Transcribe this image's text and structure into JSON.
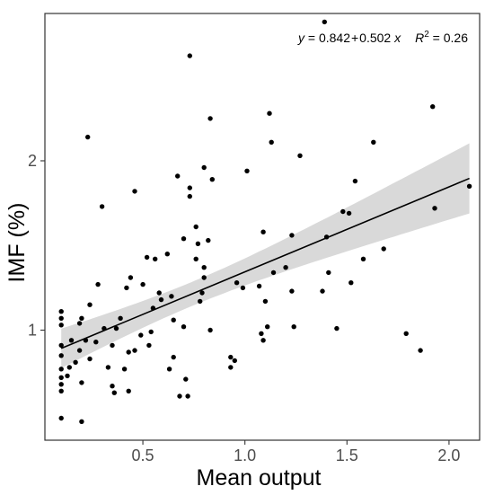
{
  "chart_data": {
    "type": "scatter",
    "xlabel": "Mean output",
    "ylabel": "IMF (%)",
    "x_ticks": [
      0.5,
      1.0,
      1.5,
      2.0
    ],
    "x_tick_labels": [
      "0.5",
      "1.0",
      "1.5",
      "2.0"
    ],
    "y_ticks": [
      1,
      2
    ],
    "y_tick_labels": [
      "1",
      "2"
    ],
    "xlim": [
      0.02,
      2.15
    ],
    "ylim": [
      0.35,
      2.87
    ],
    "grid": false,
    "annotation": {
      "y": "y",
      "eq": " = 0.842",
      "plus": "+",
      "coef": "0.502 ",
      "x": "x",
      "r": "R",
      "sup": "2",
      "rtail": " = 0.26"
    },
    "regression": {
      "intercept": 0.842,
      "slope": 0.502,
      "r2": 0.26,
      "x_range": [
        0.1,
        2.1
      ]
    },
    "colors": {
      "point": "#000000",
      "line": "#000000",
      "band": "#d9d9d9",
      "frame": "#333333",
      "text": "#4d4d4d"
    },
    "points": [
      [
        0.1,
        0.48
      ],
      [
        0.1,
        0.64
      ],
      [
        0.1,
        0.68
      ],
      [
        0.1,
        0.72
      ],
      [
        0.1,
        0.77
      ],
      [
        0.1,
        0.85
      ],
      [
        0.1,
        0.91
      ],
      [
        0.1,
        1.03
      ],
      [
        0.1,
        1.07
      ],
      [
        0.1,
        1.11
      ],
      [
        0.13,
        0.73
      ],
      [
        0.14,
        0.78
      ],
      [
        0.15,
        0.94
      ],
      [
        0.17,
        0.81
      ],
      [
        0.19,
        0.88
      ],
      [
        0.19,
        1.04
      ],
      [
        0.2,
        1.07
      ],
      [
        0.2,
        0.46
      ],
      [
        0.2,
        0.69
      ],
      [
        0.22,
        0.94
      ],
      [
        0.23,
        2.14
      ],
      [
        0.24,
        1.15
      ],
      [
        0.24,
        0.83
      ],
      [
        0.27,
        0.93
      ],
      [
        0.28,
        1.27
      ],
      [
        0.3,
        1.73
      ],
      [
        0.31,
        1.01
      ],
      [
        0.33,
        0.78
      ],
      [
        0.35,
        0.91
      ],
      [
        0.35,
        0.67
      ],
      [
        0.36,
        0.63
      ],
      [
        0.37,
        1.01
      ],
      [
        0.39,
        1.07
      ],
      [
        0.41,
        0.77
      ],
      [
        0.42,
        1.25
      ],
      [
        0.43,
        0.64
      ],
      [
        0.43,
        0.87
      ],
      [
        0.44,
        1.31
      ],
      [
        0.46,
        1.82
      ],
      [
        0.46,
        0.88
      ],
      [
        0.49,
        0.97
      ],
      [
        0.5,
        1.27
      ],
      [
        0.52,
        1.43
      ],
      [
        0.53,
        0.91
      ],
      [
        0.54,
        0.99
      ],
      [
        0.55,
        1.13
      ],
      [
        0.56,
        1.42
      ],
      [
        0.58,
        1.22
      ],
      [
        0.59,
        1.18
      ],
      [
        0.62,
        1.45
      ],
      [
        0.63,
        0.77
      ],
      [
        0.64,
        1.2
      ],
      [
        0.65,
        0.84
      ],
      [
        0.65,
        1.06
      ],
      [
        0.67,
        1.91
      ],
      [
        0.68,
        0.61
      ],
      [
        0.7,
        1.54
      ],
      [
        0.7,
        1.02
      ],
      [
        0.71,
        0.71
      ],
      [
        0.72,
        0.61
      ],
      [
        0.73,
        1.79
      ],
      [
        0.73,
        2.62
      ],
      [
        0.73,
        1.84
      ],
      [
        0.76,
        1.61
      ],
      [
        0.76,
        1.42
      ],
      [
        0.77,
        1.51
      ],
      [
        0.78,
        1.17
      ],
      [
        0.79,
        1.22
      ],
      [
        0.8,
        1.96
      ],
      [
        0.8,
        1.31
      ],
      [
        0.8,
        1.37
      ],
      [
        0.82,
        1.53
      ],
      [
        0.83,
        1.0
      ],
      [
        0.83,
        2.25
      ],
      [
        0.84,
        1.89
      ],
      [
        0.93,
        0.78
      ],
      [
        0.93,
        0.84
      ],
      [
        0.95,
        0.82
      ],
      [
        0.96,
        1.28
      ],
      [
        0.99,
        1.25
      ],
      [
        1.01,
        1.94
      ],
      [
        1.07,
        1.26
      ],
      [
        1.08,
        0.98
      ],
      [
        1.09,
        1.58
      ],
      [
        1.09,
        0.94
      ],
      [
        1.1,
        1.17
      ],
      [
        1.11,
        1.02
      ],
      [
        1.12,
        2.28
      ],
      [
        1.13,
        2.11
      ],
      [
        1.14,
        1.34
      ],
      [
        1.2,
        1.37
      ],
      [
        1.23,
        1.56
      ],
      [
        1.23,
        1.23
      ],
      [
        1.24,
        1.02
      ],
      [
        1.27,
        2.03
      ],
      [
        1.38,
        1.23
      ],
      [
        1.39,
        2.82
      ],
      [
        1.4,
        1.55
      ],
      [
        1.41,
        1.34
      ],
      [
        1.45,
        1.01
      ],
      [
        1.48,
        1.7
      ],
      [
        1.51,
        1.69
      ],
      [
        1.52,
        1.28
      ],
      [
        1.54,
        1.88
      ],
      [
        1.58,
        1.42
      ],
      [
        1.63,
        2.11
      ],
      [
        1.68,
        1.48
      ],
      [
        1.79,
        0.98
      ],
      [
        1.86,
        0.88
      ],
      [
        1.92,
        2.32
      ],
      [
        1.93,
        1.72
      ],
      [
        2.1,
        1.85
      ]
    ]
  }
}
